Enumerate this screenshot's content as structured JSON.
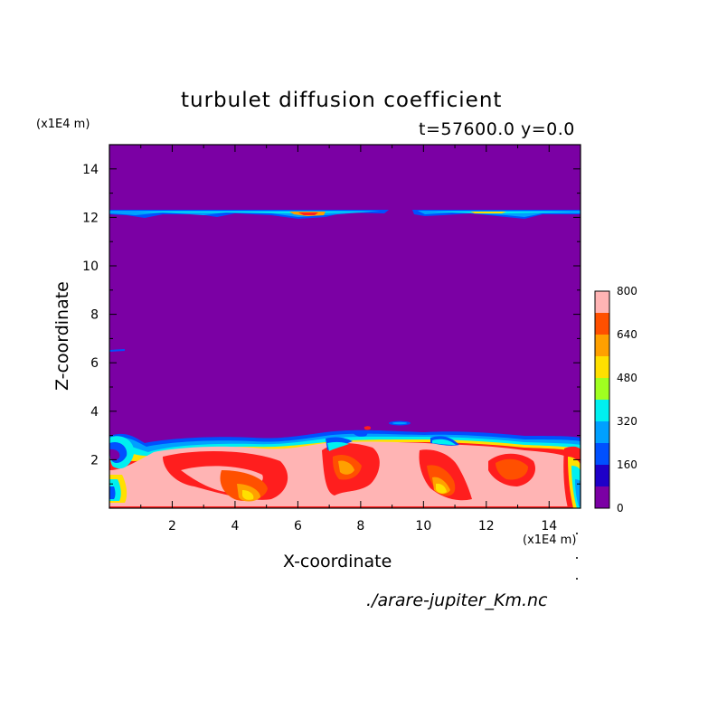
{
  "chart_data": {
    "type": "heatmap",
    "title": "turbulet diffusion coefficient",
    "subtitle": "t=57600.0 y=0.0",
    "xlabel": "X-coordinate",
    "ylabel": "Z-coordinate",
    "x_unit": "(x1E4 m)",
    "y_unit": "(x1E4 m)",
    "xlim": [
      0,
      15
    ],
    "ylim": [
      0,
      15
    ],
    "xticks": [
      2,
      4,
      6,
      8,
      10,
      12,
      14
    ],
    "yticks": [
      2,
      4,
      6,
      8,
      10,
      12,
      14
    ],
    "colorbar": {
      "levels": [
        0,
        80,
        160,
        240,
        320,
        400,
        480,
        560,
        640,
        720,
        800
      ],
      "labels": [
        0,
        160,
        320,
        480,
        640,
        800
      ],
      "colors": [
        "#7b00a4",
        "#1e00c8",
        "#0050ff",
        "#00a0ff",
        "#00f0f0",
        "#a0ff20",
        "#ffe000",
        "#ffa000",
        "#ff5000",
        "#ff1e1e"
      ],
      "top_color": "#ffb4b4"
    },
    "features": [
      {
        "name": "upper band",
        "z": 12.2,
        "x_range": [
          0,
          15
        ],
        "gap": [
          8.9,
          9.6
        ],
        "level_max": 640
      },
      {
        "name": "lower mixed layer",
        "z_top": 3.0,
        "level_max": 800
      }
    ]
  },
  "source_file": "./arare-jupiter_Km.nc"
}
